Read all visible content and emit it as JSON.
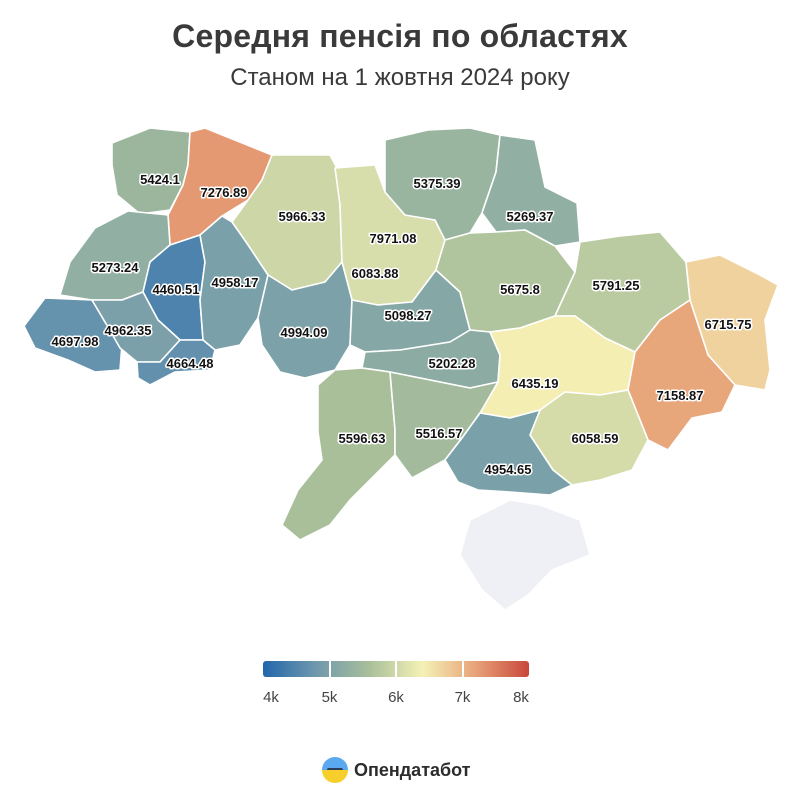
{
  "header": {
    "title": "Середня пенсія по областях",
    "subtitle": "Станом на 1 жовтня 2024 року"
  },
  "colors": {
    "scale": [
      "#2166ac",
      "#6f98ad",
      "#a9bf9a",
      "#f5f1b6",
      "#e7a278",
      "#c8473b"
    ],
    "no_data": "#eef0f5",
    "background": "#ffffff"
  },
  "map_data": {
    "regions": [
      {
        "name": "Volyn",
        "value": "5424.1"
      },
      {
        "name": "Rivne",
        "value": "7276.89"
      },
      {
        "name": "Zhytomyr",
        "value": "5966.33"
      },
      {
        "name": "Kyiv city",
        "value": "7971.08"
      },
      {
        "name": "Kyiv oblast",
        "value": "6083.88"
      },
      {
        "name": "Chernihiv",
        "value": "5375.39"
      },
      {
        "name": "Sumy",
        "value": "5269.37"
      },
      {
        "name": "Lviv",
        "value": "5273.24"
      },
      {
        "name": "Ternopil",
        "value": "4460.51"
      },
      {
        "name": "Khmelnytskyi",
        "value": "4958.17"
      },
      {
        "name": "Zakarpattia",
        "value": "4697.98"
      },
      {
        "name": "Ivano-Frankivsk",
        "value": "4962.35"
      },
      {
        "name": "Chernivtsi",
        "value": "4664.48"
      },
      {
        "name": "Vinnytsia",
        "value": "4994.09"
      },
      {
        "name": "Cherkasy",
        "value": "5098.27"
      },
      {
        "name": "Poltava",
        "value": "5675.8"
      },
      {
        "name": "Kharkiv",
        "value": "5791.25"
      },
      {
        "name": "Luhansk",
        "value": "6715.75"
      },
      {
        "name": "Kirovohrad",
        "value": "5202.28"
      },
      {
        "name": "Dnipropetrovsk",
        "value": "6435.19"
      },
      {
        "name": "Donetsk",
        "value": "7158.87"
      },
      {
        "name": "Odesa",
        "value": "5596.63"
      },
      {
        "name": "Mykolaiv",
        "value": "5516.57"
      },
      {
        "name": "Zaporizhzhia",
        "value": "6058.59"
      },
      {
        "name": "Kherson",
        "value": "4954.65"
      },
      {
        "name": "Crimea",
        "value": ""
      }
    ]
  },
  "legend": {
    "min": 4000,
    "max": 8000,
    "labels": [
      "4k",
      "5k",
      "6k",
      "7k",
      "8k"
    ]
  },
  "brand": {
    "name": "Опендатабот"
  }
}
